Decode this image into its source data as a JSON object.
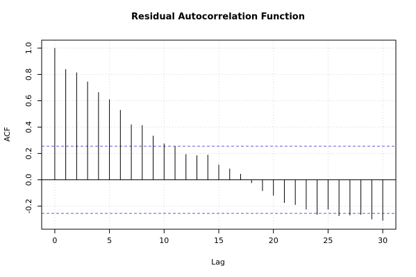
{
  "chart_data": {
    "type": "bar",
    "title": "Residual Autocorrelation Function",
    "xlabel": "Lag",
    "ylabel": "ACF",
    "x": [
      0,
      1,
      2,
      3,
      4,
      5,
      6,
      7,
      8,
      9,
      10,
      11,
      12,
      13,
      14,
      15,
      16,
      17,
      18,
      19,
      20,
      21,
      22,
      23,
      24,
      25,
      26,
      27,
      28,
      29,
      30
    ],
    "values": [
      1.0,
      0.84,
      0.815,
      0.745,
      0.665,
      0.61,
      0.53,
      0.42,
      0.415,
      0.335,
      0.275,
      0.255,
      0.195,
      0.185,
      0.19,
      0.115,
      0.085,
      0.045,
      -0.025,
      -0.085,
      -0.12,
      -0.175,
      -0.19,
      -0.225,
      -0.265,
      -0.225,
      -0.275,
      -0.27,
      -0.265,
      -0.3,
      -0.31
    ],
    "confidence_bound": 0.255,
    "xlim": [
      -1.2,
      31.2
    ],
    "ylim": [
      -0.375,
      1.06
    ],
    "x_ticks": [
      0,
      5,
      10,
      15,
      20,
      25,
      30
    ],
    "y_ticks": [
      -0.2,
      0.0,
      0.2,
      0.4,
      0.6,
      0.8,
      1.0
    ],
    "x_tick_labels": [
      "0",
      "5",
      "10",
      "15",
      "20",
      "25",
      "30"
    ],
    "y_tick_labels": [
      "-0.2",
      "0.0",
      "0.2",
      "0.4",
      "0.6",
      "0.8",
      "1.0"
    ],
    "grid": true,
    "colors": {
      "bars": "#000000",
      "confidence_line": "#5b5bd6",
      "grid": "#d3d3d3",
      "axis": "#000000"
    }
  }
}
